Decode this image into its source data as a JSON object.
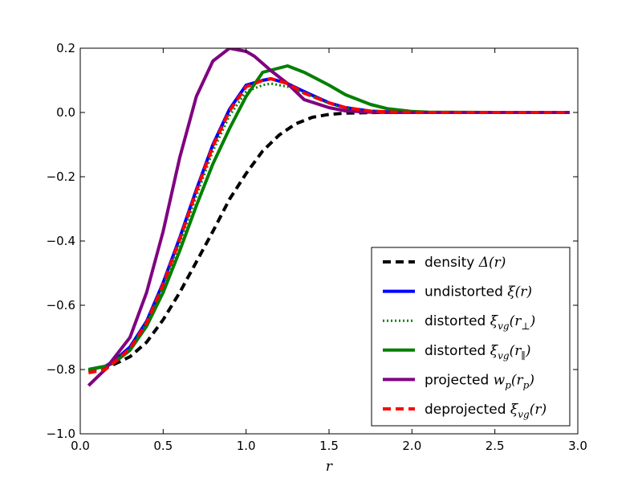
{
  "chart_data": {
    "type": "line",
    "xlabel": "r",
    "ylabel": "",
    "xlim": [
      0.0,
      3.0
    ],
    "ylim": [
      -1.0,
      0.2
    ],
    "xticks": [
      0.0,
      0.5,
      1.0,
      1.5,
      2.0,
      2.5,
      3.0
    ],
    "xtick_labels": [
      "0.0",
      "0.5",
      "1.0",
      "1.5",
      "2.0",
      "2.5",
      "3.0"
    ],
    "yticks": [
      -1.0,
      -0.8,
      -0.6,
      -0.4,
      -0.2,
      0.0,
      0.2
    ],
    "ytick_labels": [
      "−1.0",
      "−0.8",
      "−0.6",
      "−0.4",
      "−0.2",
      "0.0",
      "0.2"
    ],
    "legend_position": "lower-right",
    "grid": false,
    "series": [
      {
        "name": "density Δ(r)",
        "legend_prefix": "density ",
        "legend_math": "Δ(r)",
        "color": "#000000",
        "style": "dashed",
        "x": [
          0.05,
          0.1,
          0.2,
          0.3,
          0.4,
          0.5,
          0.6,
          0.7,
          0.8,
          0.9,
          1.0,
          1.1,
          1.2,
          1.3,
          1.4,
          1.5,
          1.6,
          1.7,
          1.8,
          2.0,
          2.2,
          2.5,
          2.95
        ],
        "y": [
          -0.805,
          -0.8,
          -0.785,
          -0.76,
          -0.715,
          -0.645,
          -0.56,
          -0.465,
          -0.37,
          -0.27,
          -0.19,
          -0.12,
          -0.07,
          -0.035,
          -0.015,
          -0.006,
          -0.002,
          -0.001,
          0.0,
          0.0,
          0.0,
          0.0,
          0.0
        ]
      },
      {
        "name": "undistorted ξ(r)",
        "legend_prefix": "undistorted ",
        "legend_math": "ξ(r)",
        "color": "#0000ff",
        "style": "solid",
        "x": [
          0.05,
          0.15,
          0.2,
          0.3,
          0.4,
          0.5,
          0.6,
          0.7,
          0.8,
          0.9,
          1.0,
          1.1,
          1.15,
          1.25,
          1.35,
          1.5,
          1.6,
          1.75,
          1.9,
          2.1,
          2.5,
          2.95
        ],
        "y": [
          -0.8,
          -0.79,
          -0.775,
          -0.73,
          -0.65,
          -0.53,
          -0.39,
          -0.24,
          -0.1,
          0.01,
          0.085,
          0.1,
          0.105,
          0.09,
          0.065,
          0.03,
          0.015,
          0.004,
          0.001,
          0.0,
          0.0,
          0.0
        ]
      },
      {
        "name": "distorted ξ_vg(r⊥)",
        "legend_prefix": "distorted ",
        "legend_math": "ξ",
        "legend_sub": "vg",
        "legend_suffix": "(r",
        "legend_sub2": "⊥",
        "legend_end": ")",
        "color": "#008000",
        "style": "dotted",
        "x": [
          0.05,
          0.15,
          0.2,
          0.3,
          0.4,
          0.5,
          0.6,
          0.7,
          0.8,
          0.9,
          1.0,
          1.1,
          1.15,
          1.25,
          1.35,
          1.5,
          1.6,
          1.75,
          1.9,
          2.1,
          2.5,
          2.95
        ],
        "y": [
          -0.8,
          -0.79,
          -0.775,
          -0.735,
          -0.655,
          -0.54,
          -0.405,
          -0.26,
          -0.12,
          -0.01,
          0.065,
          0.085,
          0.09,
          0.08,
          0.06,
          0.028,
          0.013,
          0.004,
          0.001,
          0.0,
          0.0,
          0.0
        ]
      },
      {
        "name": "distorted ξ_vg(r∥)",
        "legend_prefix": "distorted ",
        "legend_math": "ξ",
        "legend_sub": "vg",
        "legend_suffix": "(r",
        "legend_sub2": "∥",
        "legend_end": ")",
        "color": "#008000",
        "style": "solid",
        "x": [
          0.05,
          0.15,
          0.2,
          0.3,
          0.4,
          0.5,
          0.6,
          0.7,
          0.8,
          0.9,
          1.0,
          1.1,
          1.25,
          1.35,
          1.5,
          1.6,
          1.75,
          1.85,
          2.0,
          2.1,
          2.5,
          2.95
        ],
        "y": [
          -0.8,
          -0.79,
          -0.78,
          -0.74,
          -0.665,
          -0.56,
          -0.43,
          -0.29,
          -0.16,
          -0.05,
          0.05,
          0.125,
          0.145,
          0.125,
          0.085,
          0.055,
          0.025,
          0.012,
          0.003,
          0.001,
          0.0,
          0.0
        ]
      },
      {
        "name": "projected w_p(r_p)",
        "legend_prefix": "projected ",
        "legend_math": "w",
        "legend_sub": "p",
        "legend_suffix": "(r",
        "legend_sub2": "p",
        "legend_end": ")",
        "color": "#800080",
        "style": "solid",
        "x": [
          0.05,
          0.15,
          0.3,
          0.4,
          0.5,
          0.6,
          0.7,
          0.8,
          0.9,
          1.0,
          1.05,
          1.15,
          1.25,
          1.35,
          1.5,
          1.6,
          1.75,
          1.9,
          2.1,
          2.5,
          2.95
        ],
        "y": [
          -0.85,
          -0.8,
          -0.7,
          -0.56,
          -0.37,
          -0.14,
          0.05,
          0.16,
          0.2,
          0.19,
          0.175,
          0.13,
          0.09,
          0.04,
          0.015,
          0.005,
          0.001,
          0.0,
          0.0,
          0.0,
          0.0
        ]
      },
      {
        "name": "deprojected ξ_vg(r)",
        "legend_prefix": "deprojected ",
        "legend_math": "ξ",
        "legend_sub": "vg",
        "legend_suffix": "(r)",
        "color": "#ff0000",
        "style": "dashed",
        "x": [
          0.05,
          0.15,
          0.2,
          0.3,
          0.4,
          0.5,
          0.6,
          0.7,
          0.8,
          0.9,
          1.0,
          1.1,
          1.15,
          1.25,
          1.35,
          1.5,
          1.6,
          1.75,
          1.9,
          2.1,
          2.5,
          2.95
        ],
        "y": [
          -0.81,
          -0.8,
          -0.78,
          -0.735,
          -0.655,
          -0.535,
          -0.395,
          -0.245,
          -0.105,
          0.005,
          0.08,
          0.1,
          0.105,
          0.09,
          0.06,
          0.03,
          0.015,
          0.004,
          0.001,
          0.0,
          0.0,
          0.0
        ]
      }
    ]
  }
}
